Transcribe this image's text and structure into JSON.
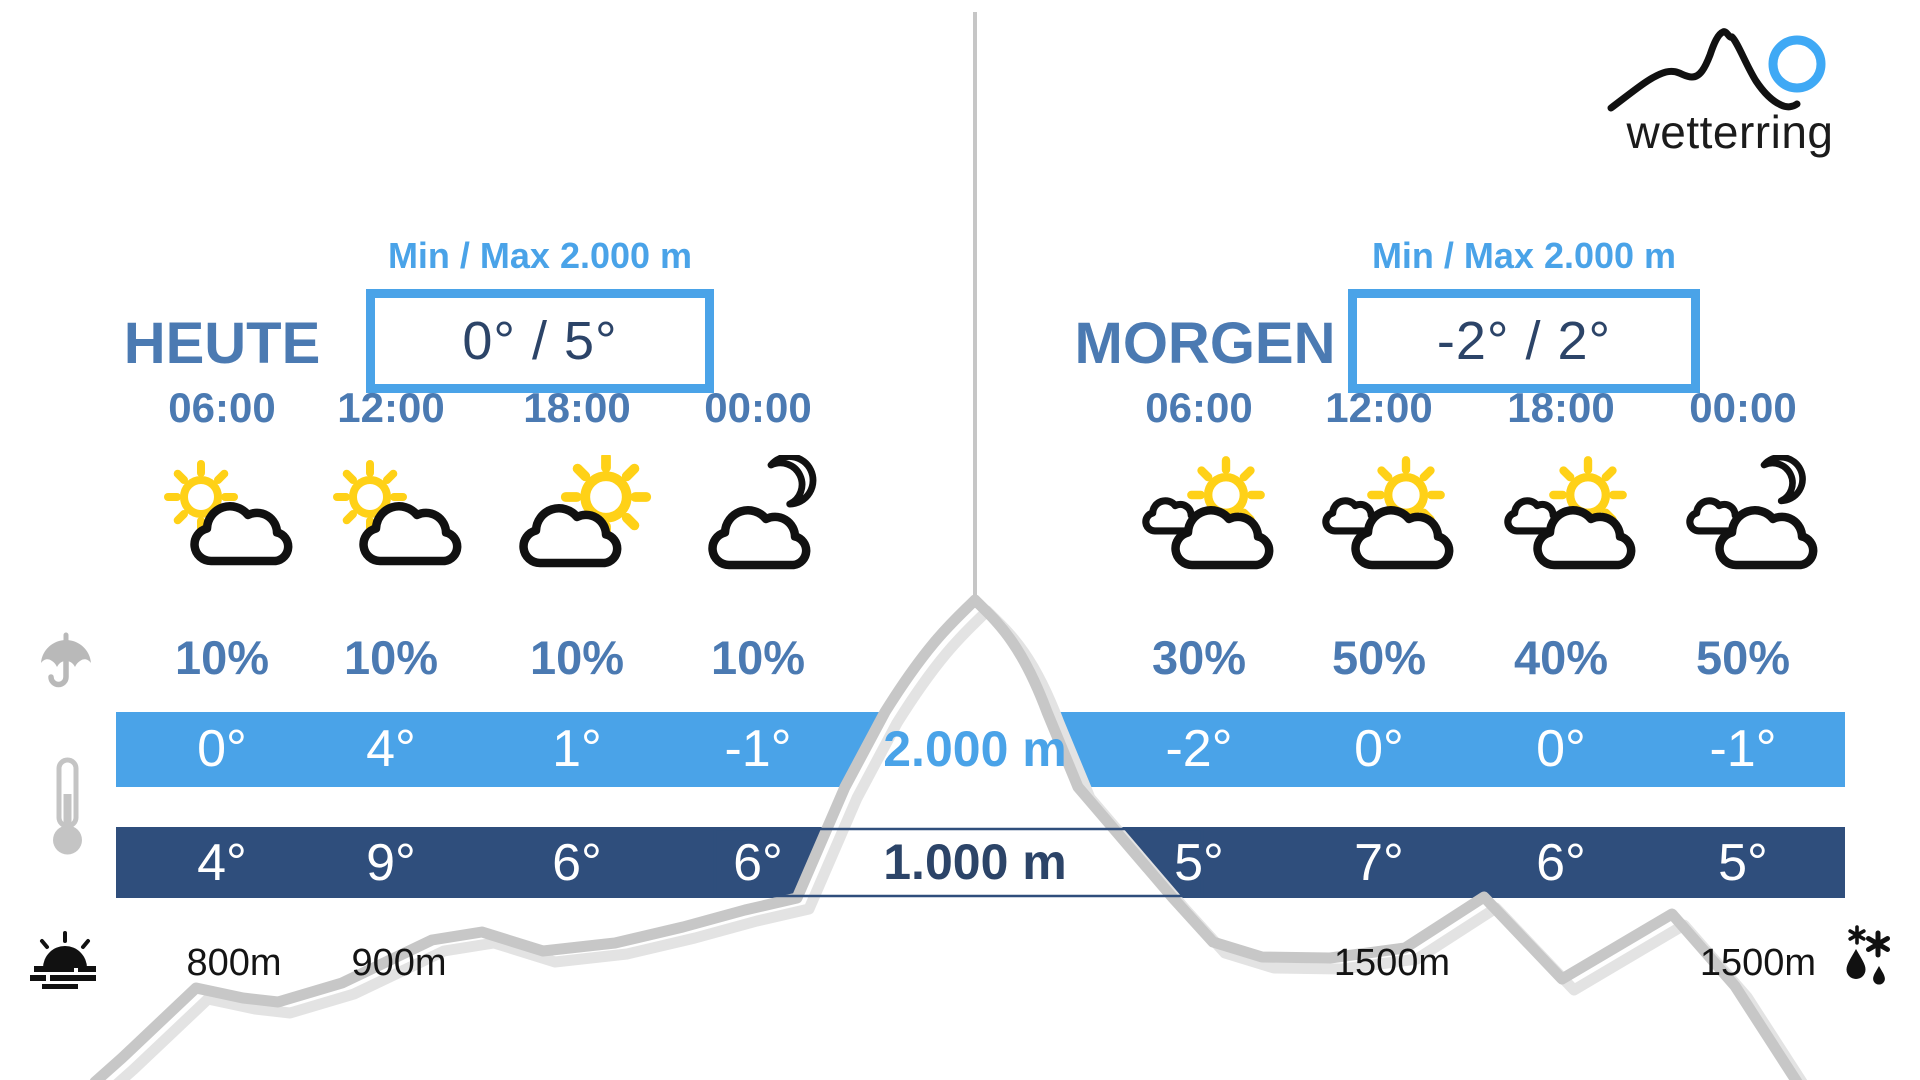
{
  "brand": {
    "name": "wetterring",
    "logo_icon": "mountain-sun-logo"
  },
  "days": [
    {
      "title": "HEUTE",
      "minmax_label": "Min / Max 2.000 m",
      "minmax_value": "0° / 5°",
      "times": [
        "06:00",
        "12:00",
        "18:00",
        "00:00"
      ],
      "icons": [
        "icon-sun-cloud",
        "icon-sun-cloud",
        "icon-cloud-sun",
        "icon-cloud-moon"
      ],
      "precipitation": [
        "10%",
        "10%",
        "10%",
        "10%"
      ],
      "temps_2000m": [
        "0°",
        "4°",
        "1°",
        "-1°"
      ],
      "temps_1000m": [
        "4°",
        "9°",
        "6°",
        "6°"
      ],
      "snow_lines": [
        "800m",
        "900m"
      ]
    },
    {
      "title": "MORGEN",
      "minmax_label": "Min / Max 2.000 m",
      "minmax_value": "-2° / 2°",
      "times": [
        "06:00",
        "12:00",
        "18:00",
        "00:00"
      ],
      "icons": [
        "icon-clouds-sun",
        "icon-clouds-sun",
        "icon-clouds-sun",
        "icon-clouds-moon"
      ],
      "precipitation": [
        "30%",
        "50%",
        "40%",
        "50%"
      ],
      "temps_2000m": [
        "-2°",
        "0°",
        "0°",
        "-1°"
      ],
      "temps_1000m": [
        "5°",
        "7°",
        "6°",
        "5°"
      ],
      "snow_lines": [
        "1500m",
        "1500m"
      ]
    }
  ],
  "altitude_bands": {
    "upper": "2.000 m",
    "lower": "1.000 m"
  },
  "side_icons": {
    "precipitation": "umbrella-icon",
    "temperature": "thermometer-icon",
    "bottom_left": "sunrise-fog-icon",
    "bottom_right": "snow-rain-icon"
  },
  "colors": {
    "steel_blue": "#4b7ab2",
    "light_blue": "#4aa3e8",
    "dark_navy_band": "#2f4e7c",
    "box_value_navy": "#2c4468",
    "mountain_gray": "#c7c7c7",
    "mountain_shadow": "#e3e3e3",
    "sun_yellow": "#ffd117",
    "logo_sun_blue": "#3fa9f5"
  }
}
